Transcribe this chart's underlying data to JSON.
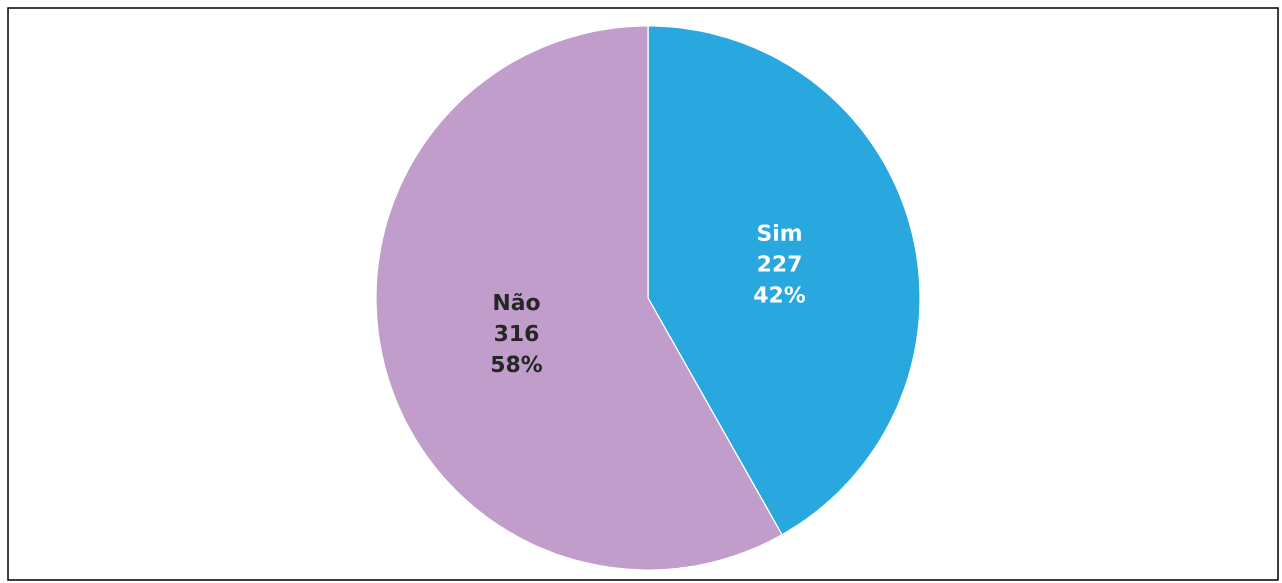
{
  "chart_data": {
    "type": "pie",
    "categories": [
      "Sim",
      "Não"
    ],
    "values": [
      227,
      316
    ],
    "colors": [
      "#29a8e0",
      "#c09dcb"
    ],
    "value_labels": [
      "227",
      "316"
    ],
    "annotations": [
      {
        "text": "42%",
        "x": "Sim"
      },
      {
        "text": "58%",
        "x": "Não"
      }
    ]
  }
}
